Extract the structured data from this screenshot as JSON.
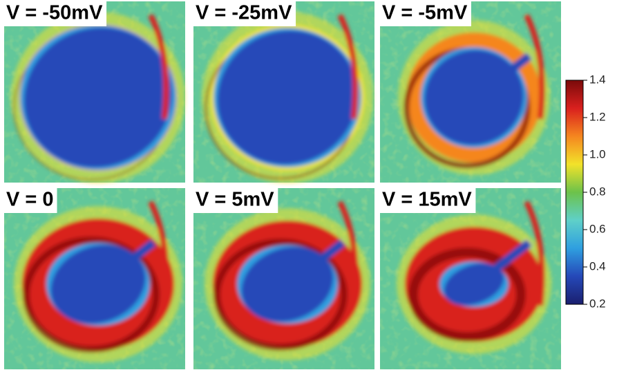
{
  "chart_data": {
    "type": "heatmap",
    "panels": [
      "V = -50mV",
      "V = -25mV",
      "V = -5mV",
      "V = 0",
      "V = 5mV",
      "V = 15mV"
    ],
    "colorbar": {
      "lim": [
        0.2,
        1.4
      ],
      "ticks": [
        0.2,
        0.4,
        0.6,
        0.8,
        {
          "value": 1,
          "label": "1.0"
        },
        1.2,
        1.4
      ],
      "colors": [
        "#1a1f6e",
        "#2548b8",
        "#2f9fe0",
        "#5fd0c8",
        "#6cc24a",
        "#f2e22a",
        "#f5861f",
        "#d9201e",
        "#7a0a0a"
      ]
    }
  }
}
